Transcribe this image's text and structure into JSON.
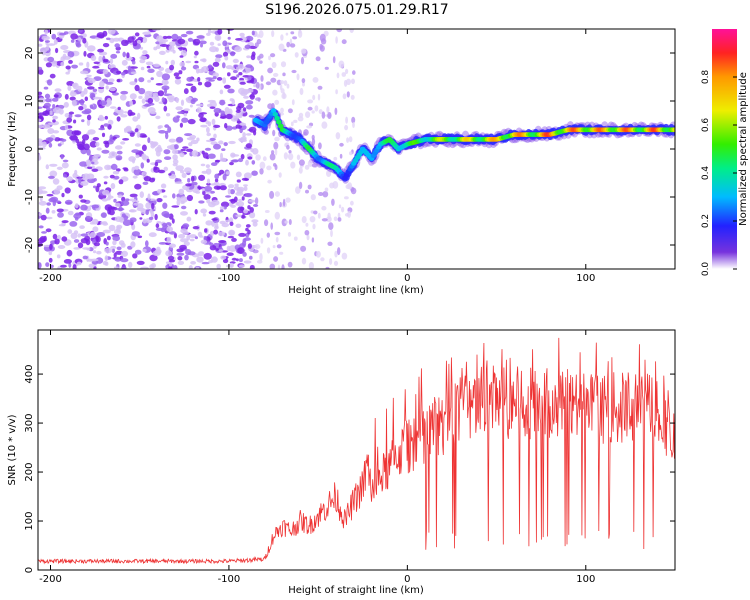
{
  "title": "S196.2026.075.01.29.R17",
  "chart_data": [
    {
      "type": "heatmap",
      "name": "spectrogram",
      "xlabel": "Height of straight line (km)",
      "ylabel": "Frequency (Hz)",
      "xlim": [
        -207,
        150
      ],
      "ylim": [
        -25,
        25
      ],
      "xticks": [
        -200,
        -100,
        0,
        100
      ],
      "yticks": [
        -20,
        -10,
        0,
        10,
        20
      ],
      "colorbar": {
        "label": "Normalized spectral amplitude",
        "range": [
          0,
          1
        ],
        "ticks": [
          "0.0",
          "0.2",
          "0.4",
          "0.6",
          "0.8"
        ]
      },
      "ridge": {
        "x": [
          -85,
          -80,
          -75,
          -70,
          -65,
          -60,
          -55,
          -50,
          -45,
          -40,
          -35,
          -30,
          -25,
          -20,
          -15,
          -10,
          -5,
          0,
          10,
          20,
          30,
          40,
          50,
          60,
          70,
          80,
          90,
          100,
          110,
          120,
          130,
          140,
          150
        ],
        "freq": [
          6,
          5,
          8,
          4,
          3,
          2,
          0,
          -2,
          -3,
          -4,
          -6,
          -3,
          0,
          -2,
          1,
          2,
          0,
          1,
          2,
          2,
          2,
          2,
          2,
          3,
          3,
          3,
          4,
          4,
          4,
          4,
          4,
          4,
          4
        ],
        "amplitude": [
          0.3,
          0.4,
          0.4,
          0.5,
          0.4,
          0.3,
          0.5,
          0.4,
          0.5,
          0.4,
          0.3,
          0.4,
          0.3,
          0.5,
          0.4,
          0.5,
          0.6,
          0.5,
          0.6,
          0.65,
          0.7,
          0.75,
          0.8,
          0.85,
          0.8,
          0.9,
          0.85,
          0.9,
          0.85,
          0.9,
          0.8,
          0.9,
          0.8
        ]
      },
      "noise": {
        "x_range": [
          -207,
          -85
        ],
        "amplitude": 0.15
      }
    },
    {
      "type": "line",
      "name": "snr",
      "xlabel": "Height of straight line (km)",
      "ylabel": "SNR (10 * v/v)",
      "xlim": [
        -207,
        150
      ],
      "ylim": [
        0,
        490
      ],
      "xticks": [
        -200,
        -100,
        0,
        100
      ],
      "yticks": [
        0,
        100,
        200,
        300,
        400
      ],
      "color": "#ee3333",
      "series": [
        {
          "name": "SNR",
          "x": [
            -207,
            -190,
            -170,
            -150,
            -130,
            -110,
            -100,
            -90,
            -80,
            -78,
            -75,
            -70,
            -65,
            -60,
            -55,
            -50,
            -45,
            -40,
            -35,
            -30,
            -25,
            -22,
            -20,
            -15,
            -10,
            -5,
            0,
            10,
            20,
            30,
            40,
            50,
            60,
            70,
            80,
            90,
            100,
            110,
            120,
            130,
            140,
            145,
            150
          ],
          "y": [
            18,
            18,
            18,
            18,
            18,
            18,
            18,
            20,
            22,
            40,
            70,
            90,
            80,
            100,
            90,
            110,
            130,
            150,
            100,
            140,
            170,
            220,
            160,
            190,
            210,
            240,
            250,
            280,
            300,
            330,
            340,
            345,
            340,
            345,
            340,
            335,
            330,
            330,
            330,
            330,
            340,
            300,
            240
          ]
        }
      ]
    }
  ]
}
